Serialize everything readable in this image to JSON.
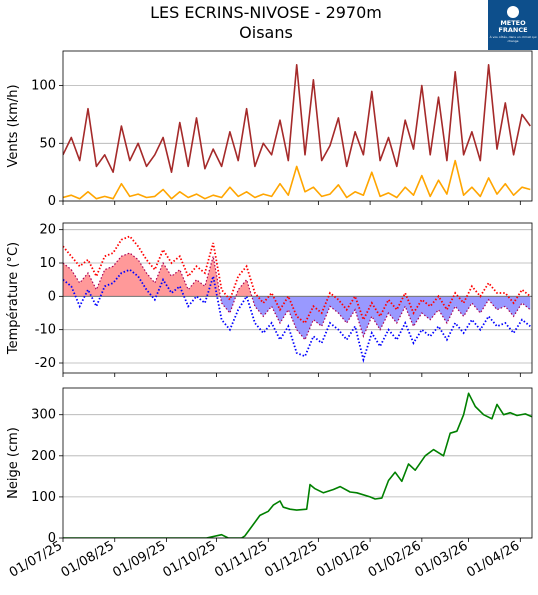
{
  "header": {
    "title_line1": "LES ECRINS-NIVOSE - 2970m",
    "title_line2": "Oisans"
  },
  "logo": {
    "line1": "METEO",
    "line2": "FRANCE",
    "tagline": "À vos côtés, dans un climat qui change",
    "color": "#0d4f8c"
  },
  "chart_data": [
    {
      "type": "line",
      "id": "wind",
      "ylabel": "Vents (km/h)",
      "ylim": [
        0,
        130
      ],
      "yticks": [
        0,
        50,
        100
      ],
      "grid": "horizontal",
      "colors": {
        "max_wind": "#a52a2a",
        "mean_wind": "#ffa500"
      },
      "series": [
        {
          "key": "max_wind",
          "x": [
            "2025-07-01",
            "2025-07-06",
            "2025-07-11",
            "2025-07-16",
            "2025-07-21",
            "2025-07-26",
            "2025-07-31",
            "2025-08-05",
            "2025-08-10",
            "2025-08-15",
            "2025-08-20",
            "2025-08-25",
            "2025-08-30",
            "2025-09-04",
            "2025-09-09",
            "2025-09-14",
            "2025-09-19",
            "2025-09-24",
            "2025-09-29",
            "2025-10-04",
            "2025-10-09",
            "2025-10-14",
            "2025-10-19",
            "2025-10-24",
            "2025-10-29",
            "2025-11-03",
            "2025-11-08",
            "2025-11-13",
            "2025-11-18",
            "2025-11-23",
            "2025-11-28",
            "2025-12-03",
            "2025-12-08",
            "2025-12-13",
            "2025-12-18",
            "2025-12-23",
            "2025-12-28",
            "2026-01-02",
            "2026-01-07",
            "2026-01-12",
            "2026-01-17",
            "2026-01-22",
            "2026-01-27",
            "2026-02-01",
            "2026-02-06",
            "2026-02-11",
            "2026-02-16",
            "2026-02-21",
            "2026-02-26",
            "2026-03-03",
            "2026-03-08",
            "2026-03-13",
            "2026-03-18",
            "2026-03-23",
            "2026-03-28",
            "2026-04-02",
            "2026-04-07"
          ],
          "values": [
            40,
            55,
            35,
            80,
            30,
            40,
            25,
            65,
            35,
            50,
            30,
            40,
            55,
            25,
            68,
            30,
            72,
            28,
            45,
            30,
            60,
            35,
            80,
            30,
            50,
            40,
            70,
            35,
            118,
            40,
            105,
            35,
            48,
            72,
            30,
            60,
            40,
            95,
            35,
            55,
            30,
            70,
            45,
            100,
            40,
            90,
            35,
            112,
            40,
            60,
            35,
            118,
            45,
            85,
            40,
            75,
            65
          ]
        },
        {
          "key": "mean_wind",
          "x": [
            "2025-07-01",
            "2025-07-06",
            "2025-07-11",
            "2025-07-16",
            "2025-07-21",
            "2025-07-26",
            "2025-07-31",
            "2025-08-05",
            "2025-08-10",
            "2025-08-15",
            "2025-08-20",
            "2025-08-25",
            "2025-08-30",
            "2025-09-04",
            "2025-09-09",
            "2025-09-14",
            "2025-09-19",
            "2025-09-24",
            "2025-09-29",
            "2025-10-04",
            "2025-10-09",
            "2025-10-14",
            "2025-10-19",
            "2025-10-24",
            "2025-10-29",
            "2025-11-03",
            "2025-11-08",
            "2025-11-13",
            "2025-11-18",
            "2025-11-23",
            "2025-11-28",
            "2025-12-03",
            "2025-12-08",
            "2025-12-13",
            "2025-12-18",
            "2025-12-23",
            "2025-12-28",
            "2026-01-02",
            "2026-01-07",
            "2026-01-12",
            "2026-01-17",
            "2026-01-22",
            "2026-01-27",
            "2026-02-01",
            "2026-02-06",
            "2026-02-11",
            "2026-02-16",
            "2026-02-21",
            "2026-02-26",
            "2026-03-03",
            "2026-03-08",
            "2026-03-13",
            "2026-03-18",
            "2026-03-23",
            "2026-03-28",
            "2026-04-02",
            "2026-04-07"
          ],
          "values": [
            3,
            5,
            2,
            8,
            2,
            4,
            2,
            15,
            4,
            6,
            3,
            4,
            10,
            2,
            8,
            3,
            6,
            2,
            5,
            3,
            12,
            4,
            8,
            3,
            6,
            4,
            15,
            5,
            30,
            8,
            12,
            4,
            6,
            14,
            3,
            8,
            5,
            25,
            4,
            7,
            3,
            12,
            5,
            22,
            4,
            18,
            6,
            35,
            5,
            12,
            4,
            20,
            6,
            15,
            5,
            12,
            10
          ]
        }
      ]
    },
    {
      "type": "area",
      "id": "temperature",
      "ylabel": "Température (°C)",
      "ylim": [
        -23,
        22
      ],
      "yticks": [
        -20,
        -10,
        0,
        10,
        20
      ],
      "grid": "horizontal",
      "colors": {
        "positive_fill": "#ff9999",
        "negative_fill": "#9999ff",
        "max_temp": "#ff0000",
        "min_temp": "#0000ff",
        "mean_temp": "#aa0055",
        "zero_line": "#777777"
      },
      "series": [
        {
          "key": "mean",
          "x": [
            "2025-07-01",
            "2025-07-06",
            "2025-07-11",
            "2025-07-16",
            "2025-07-21",
            "2025-07-26",
            "2025-07-31",
            "2025-08-05",
            "2025-08-10",
            "2025-08-15",
            "2025-08-20",
            "2025-08-25",
            "2025-08-30",
            "2025-09-04",
            "2025-09-09",
            "2025-09-14",
            "2025-09-19",
            "2025-09-24",
            "2025-09-29",
            "2025-10-04",
            "2025-10-09",
            "2025-10-14",
            "2025-10-19",
            "2025-10-24",
            "2025-10-29",
            "2025-11-03",
            "2025-11-08",
            "2025-11-13",
            "2025-11-18",
            "2025-11-23",
            "2025-11-28",
            "2025-12-03",
            "2025-12-08",
            "2025-12-13",
            "2025-12-18",
            "2025-12-23",
            "2025-12-28",
            "2026-01-02",
            "2026-01-07",
            "2026-01-12",
            "2026-01-17",
            "2026-01-22",
            "2026-01-27",
            "2026-02-01",
            "2026-02-06",
            "2026-02-11",
            "2026-02-16",
            "2026-02-21",
            "2026-02-26",
            "2026-03-03",
            "2026-03-08",
            "2026-03-13",
            "2026-03-18",
            "2026-03-23",
            "2026-03-28",
            "2026-04-02",
            "2026-04-07"
          ],
          "values": [
            10,
            8,
            4,
            7,
            2,
            8,
            9,
            12,
            13,
            11,
            7,
            4,
            10,
            6,
            8,
            2,
            5,
            3,
            12,
            -2,
            -5,
            2,
            5,
            -3,
            -6,
            -3,
            -8,
            -4,
            -10,
            -13,
            -7,
            -9,
            -3,
            -5,
            -8,
            -4,
            -12,
            -6,
            -10,
            -5,
            -8,
            -3,
            -9,
            -5,
            -7,
            -4,
            -8,
            -3,
            -6,
            -2,
            -5,
            -1,
            -4,
            -3,
            -6,
            -2,
            -4
          ]
        },
        {
          "key": "max",
          "x": [
            "2025-07-01",
            "2025-07-06",
            "2025-07-11",
            "2025-07-16",
            "2025-07-21",
            "2025-07-26",
            "2025-07-31",
            "2025-08-05",
            "2025-08-10",
            "2025-08-15",
            "2025-08-20",
            "2025-08-25",
            "2025-08-30",
            "2025-09-04",
            "2025-09-09",
            "2025-09-14",
            "2025-09-19",
            "2025-09-24",
            "2025-09-29",
            "2025-10-04",
            "2025-10-09",
            "2025-10-14",
            "2025-10-19",
            "2025-10-24",
            "2025-10-29",
            "2025-11-03",
            "2025-11-08",
            "2025-11-13",
            "2025-11-18",
            "2025-11-23",
            "2025-11-28",
            "2025-12-03",
            "2025-12-08",
            "2025-12-13",
            "2025-12-18",
            "2025-12-23",
            "2025-12-28",
            "2026-01-02",
            "2026-01-07",
            "2026-01-12",
            "2026-01-17",
            "2026-01-22",
            "2026-01-27",
            "2026-02-01",
            "2026-02-06",
            "2026-02-11",
            "2026-02-16",
            "2026-02-21",
            "2026-02-26",
            "2026-03-03",
            "2026-03-08",
            "2026-03-13",
            "2026-03-18",
            "2026-03-23",
            "2026-03-28",
            "2026-04-02",
            "2026-04-07"
          ],
          "values": [
            15,
            12,
            9,
            11,
            6,
            12,
            13,
            17,
            18,
            15,
            11,
            8,
            14,
            10,
            12,
            6,
            9,
            7,
            16,
            2,
            -1,
            6,
            9,
            1,
            -2,
            1,
            -4,
            0,
            -6,
            -8,
            -3,
            -5,
            1,
            -1,
            -4,
            0,
            -7,
            -2,
            -6,
            -1,
            -4,
            1,
            -5,
            -1,
            -3,
            0,
            -4,
            1,
            -2,
            3,
            0,
            4,
            1,
            1,
            -2,
            2,
            0
          ]
        },
        {
          "key": "min",
          "x": [
            "2025-07-01",
            "2025-07-06",
            "2025-07-11",
            "2025-07-16",
            "2025-07-21",
            "2025-07-26",
            "2025-07-31",
            "2025-08-05",
            "2025-08-10",
            "2025-08-15",
            "2025-08-20",
            "2025-08-25",
            "2025-08-30",
            "2025-09-04",
            "2025-09-09",
            "2025-09-14",
            "2025-09-19",
            "2025-09-24",
            "2025-09-29",
            "2025-10-04",
            "2025-10-09",
            "2025-10-14",
            "2025-10-19",
            "2025-10-24",
            "2025-10-29",
            "2025-11-03",
            "2025-11-08",
            "2025-11-13",
            "2025-11-18",
            "2025-11-23",
            "2025-11-28",
            "2025-12-03",
            "2025-12-08",
            "2025-12-13",
            "2025-12-18",
            "2025-12-23",
            "2025-12-28",
            "2026-01-02",
            "2026-01-07",
            "2026-01-12",
            "2026-01-17",
            "2026-01-22",
            "2026-01-27",
            "2026-02-01",
            "2026-02-06",
            "2026-02-11",
            "2026-02-16",
            "2026-02-21",
            "2026-02-26",
            "2026-03-03",
            "2026-03-08",
            "2026-03-13",
            "2026-03-18",
            "2026-03-23",
            "2026-03-28",
            "2026-04-02",
            "2026-04-07"
          ],
          "values": [
            5,
            3,
            -3,
            2,
            -3,
            3,
            4,
            7,
            8,
            6,
            2,
            -1,
            5,
            1,
            3,
            -3,
            0,
            -2,
            6,
            -7,
            -10,
            -4,
            0,
            -8,
            -11,
            -8,
            -13,
            -9,
            -17,
            -18,
            -12,
            -14,
            -8,
            -10,
            -13,
            -9,
            -19,
            -11,
            -15,
            -10,
            -13,
            -8,
            -14,
            -10,
            -12,
            -9,
            -13,
            -8,
            -11,
            -7,
            -10,
            -6,
            -9,
            -8,
            -11,
            -7,
            -9
          ]
        }
      ]
    },
    {
      "type": "line",
      "id": "snow",
      "ylabel": "Neige (cm)",
      "ylim": [
        0,
        365
      ],
      "yticks": [
        0,
        100,
        200,
        300
      ],
      "grid": "horizontal",
      "colors": {
        "snow_depth": "#008000"
      },
      "series": [
        {
          "key": "snow_depth",
          "x": [
            "2025-07-01",
            "2025-08-01",
            "2025-09-01",
            "2025-09-25",
            "2025-10-04",
            "2025-10-08",
            "2025-10-16",
            "2025-10-18",
            "2025-10-27",
            "2025-11-01",
            "2025-11-04",
            "2025-11-08",
            "2025-11-10",
            "2025-11-14",
            "2025-11-18",
            "2025-11-24",
            "2025-11-26",
            "2025-11-29",
            "2025-12-04",
            "2025-12-10",
            "2025-12-14",
            "2025-12-20",
            "2025-12-24",
            "2026-01-01",
            "2026-01-04",
            "2026-01-08",
            "2026-01-12",
            "2026-01-16",
            "2026-01-20",
            "2026-01-24",
            "2026-01-28",
            "2026-02-03",
            "2026-02-08",
            "2026-02-14",
            "2026-02-18",
            "2026-02-22",
            "2026-02-26",
            "2026-03-01",
            "2026-03-05",
            "2026-03-10",
            "2026-03-15",
            "2026-03-18",
            "2026-03-22",
            "2026-03-26",
            "2026-03-30",
            "2026-04-04",
            "2026-04-08"
          ],
          "values": [
            0,
            0,
            0,
            0,
            8,
            0,
            0,
            5,
            55,
            65,
            80,
            90,
            75,
            70,
            68,
            70,
            130,
            120,
            110,
            118,
            125,
            112,
            110,
            100,
            95,
            97,
            140,
            160,
            138,
            180,
            165,
            200,
            215,
            200,
            255,
            260,
            300,
            352,
            320,
            300,
            290,
            325,
            300,
            305,
            298,
            302,
            295
          ]
        }
      ]
    }
  ],
  "x_axis": {
    "type": "date",
    "range": [
      "2025-07-01",
      "2026-04-08"
    ],
    "ticks": [
      "2025-07-01",
      "2025-08-01",
      "2025-09-01",
      "2025-10-01",
      "2025-11-01",
      "2025-12-01",
      "2026-01-01",
      "2026-02-01",
      "2026-03-01",
      "2026-04-01"
    ],
    "tick_labels": [
      "01/07/25",
      "01/08/25",
      "01/09/25",
      "01/10/25",
      "01/11/25",
      "01/12/25",
      "01/01/26",
      "01/02/26",
      "01/03/26",
      "01/04/26"
    ]
  }
}
